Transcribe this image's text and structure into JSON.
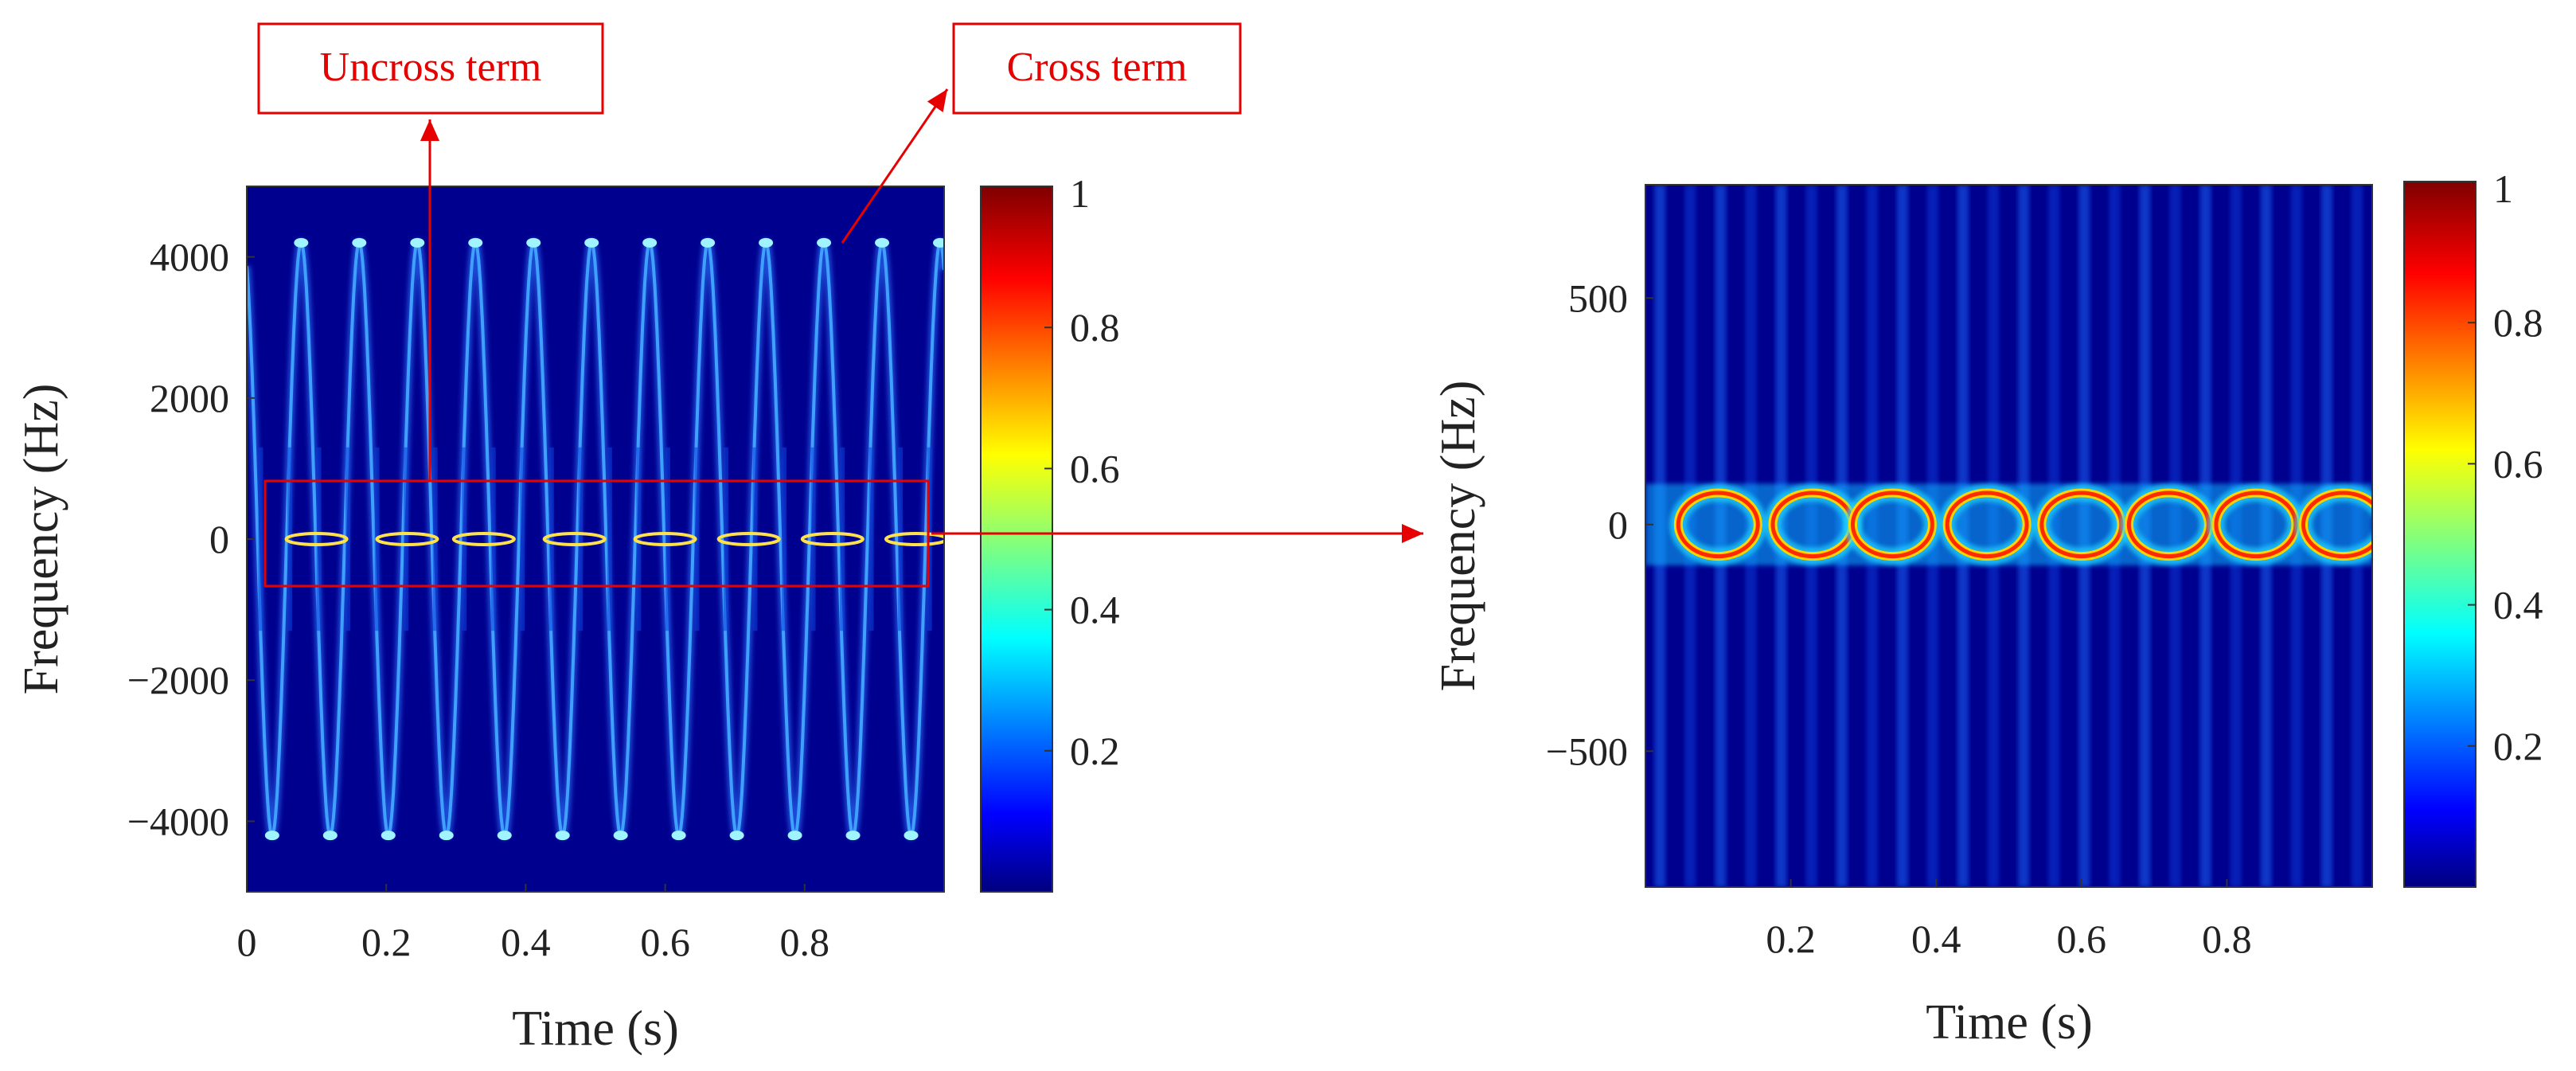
{
  "chart_data": [
    {
      "type": "heatmap",
      "title": "",
      "xlabel": "Time (s)",
      "ylabel": "Frequency (Hz)",
      "xlim": [
        0,
        1
      ],
      "ylim": [
        -5000,
        5000
      ],
      "x_ticks": [
        0,
        0.2,
        0.4,
        0.6,
        0.8
      ],
      "x_tick_labels": [
        "0",
        "0.2",
        "0.4",
        "0.6",
        "0.8"
      ],
      "y_ticks": [
        4000,
        2000,
        0,
        -2000,
        -4000
      ],
      "y_tick_labels": [
        "4000",
        "2000",
        "0",
        "−2000",
        "−4000"
      ],
      "sinusoid_amplitude_hz": 4200,
      "sinusoid_period_s": 0.0833,
      "colorbar": {
        "min": 0,
        "max": 1,
        "ticks": [
          1,
          0.8,
          0.6,
          0.4,
          0.2
        ],
        "tick_labels": [
          "1",
          "0.8",
          "0.6",
          "0.4",
          "0.2"
        ]
      },
      "annotations": [
        {
          "text": "Uncross term",
          "points_to": "component near 0 Hz"
        },
        {
          "text": "Cross term",
          "points_to": "sinusoidal component near 4200 Hz"
        }
      ]
    },
    {
      "type": "heatmap",
      "title": "",
      "xlabel": "Time (s)",
      "ylabel": "Frequency (Hz)",
      "xlim": [
        0,
        1
      ],
      "ylim": [
        -800,
        750
      ],
      "x_ticks": [
        0.2,
        0.4,
        0.6,
        0.8
      ],
      "x_tick_labels": [
        "0.2",
        "0.4",
        "0.6",
        "0.8"
      ],
      "y_ticks": [
        500,
        0,
        -500
      ],
      "y_tick_labels": [
        "500",
        "0",
        "−500"
      ],
      "ellipse_centers_s": [
        0.1,
        0.23,
        0.34,
        0.47,
        0.6,
        0.72,
        0.84,
        0.96
      ],
      "ellipse_half_height_hz": 70,
      "colorbar": {
        "min": 0,
        "max": 1,
        "ticks": [
          1,
          0.8,
          0.6,
          0.4,
          0.2
        ],
        "tick_labels": [
          "1",
          "0.8",
          "0.6",
          "0.4",
          "0.2"
        ]
      },
      "zoom_range_hz": [
        -800,
        800
      ]
    }
  ],
  "colors": {
    "background": "#00008f",
    "annotation": "#e60000",
    "colormap": [
      "#00007f",
      "#0000ff",
      "#007fff",
      "#00ffff",
      "#7fff7f",
      "#ffff00",
      "#ff7f00",
      "#ff0000",
      "#7f0000"
    ]
  }
}
